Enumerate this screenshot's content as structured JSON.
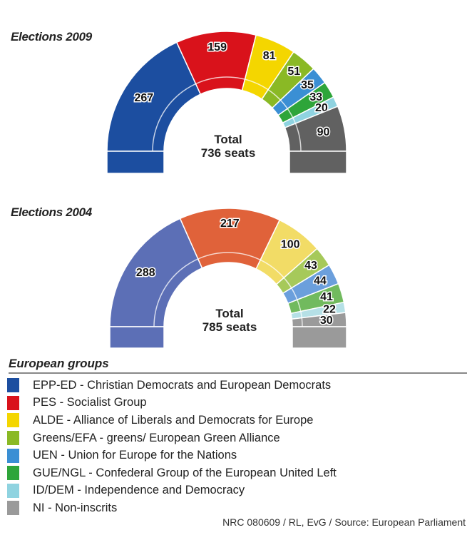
{
  "chart_data": [
    {
      "type": "hemicycle",
      "title": "Elections 2009",
      "total_label": "Total",
      "seats_label": "736 seats",
      "total": 736,
      "series": [
        {
          "group": "EPP-ED",
          "value": 267,
          "label": "267",
          "color": "#1c4ea0"
        },
        {
          "group": "PES",
          "value": 159,
          "label": "159",
          "color": "#d9121b"
        },
        {
          "group": "ALDE",
          "value": 81,
          "label": "81",
          "color": "#f4d600"
        },
        {
          "group": "Greens/EFA",
          "value": 51,
          "label": "51",
          "color": "#8ab925"
        },
        {
          "group": "UEN",
          "value": 35,
          "label": "35",
          "color": "#3a8fd4"
        },
        {
          "group": "GUE/NGL",
          "value": 33,
          "label": "33",
          "color": "#2ea53a"
        },
        {
          "group": "ID/DEM",
          "value": 20,
          "label": "20",
          "color": "#8fd3e0"
        },
        {
          "group": "NI",
          "value": 90,
          "label": "90",
          "color": "#616161"
        }
      ]
    },
    {
      "type": "hemicycle",
      "title": "Elections 2004",
      "total_label": "Total",
      "seats_label": "785 seats",
      "total": 785,
      "series": [
        {
          "group": "EPP-ED",
          "value": 288,
          "label": "288",
          "color": "#5c6fb6"
        },
        {
          "group": "PES",
          "value": 217,
          "label": "217",
          "color": "#e0623a"
        },
        {
          "group": "ALDE",
          "value": 100,
          "label": "100",
          "color": "#f2dc66"
        },
        {
          "group": "Greens/EFA",
          "value": 43,
          "label": "43",
          "color": "#a6c95a"
        },
        {
          "group": "UEN",
          "value": 44,
          "label": "44",
          "color": "#6b9fdc"
        },
        {
          "group": "GUE/NGL",
          "value": 41,
          "label": "41",
          "color": "#71ba5e"
        },
        {
          "group": "ID/DEM",
          "value": 22,
          "label": "22",
          "color": "#b5e0e6"
        },
        {
          "group": "NI",
          "value": 30,
          "label": "30",
          "color": "#9a9a9a"
        }
      ]
    }
  ],
  "legend": {
    "title": "European groups",
    "items": [
      {
        "label": "EPP-ED - Christian Democrats and European Democrats",
        "color": "#1c4ea0"
      },
      {
        "label": "PES - Socialist Group",
        "color": "#d9121b"
      },
      {
        "label": "ALDE - Alliance of Liberals and Democrats for Europe",
        "color": "#f4d600"
      },
      {
        "label": "Greens/EFA - greens/ European Green Alliance",
        "color": "#8ab925"
      },
      {
        "label": "UEN - Union for Europe for the Nations",
        "color": "#3a8fd4"
      },
      {
        "label": "GUE/NGL - Confederal Group of the European United Left",
        "color": "#2ea53a"
      },
      {
        "label": "ID/DEM - Independence and Democracy",
        "color": "#8fd3e0"
      },
      {
        "label": "NI - Non-inscrits",
        "color": "#9a9a9a"
      }
    ]
  },
  "source": "NRC 080609 / RL, EvG / Source: European Parliament"
}
